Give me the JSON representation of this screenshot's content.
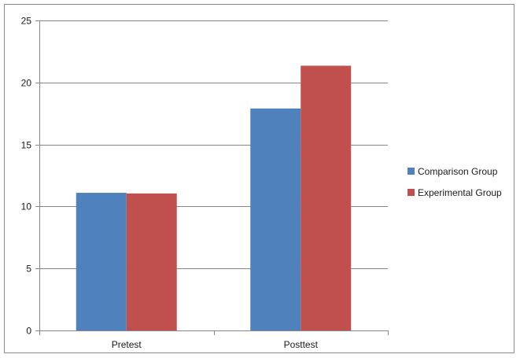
{
  "chart_data": {
    "type": "bar",
    "categories": [
      "Pretest",
      "Posttest"
    ],
    "series": [
      {
        "name": "Comparison Group",
        "color": "#4F81BD",
        "values": [
          11.1,
          17.9
        ]
      },
      {
        "name": "Experimental Group",
        "color": "#C0504D",
        "values": [
          11.05,
          21.35
        ]
      }
    ],
    "ylim": [
      0,
      25
    ],
    "yticks": [
      0,
      5,
      10,
      15,
      20,
      25
    ],
    "gridlines": true,
    "legend_position": "right",
    "title": "",
    "xlabel": "",
    "ylabel": ""
  }
}
